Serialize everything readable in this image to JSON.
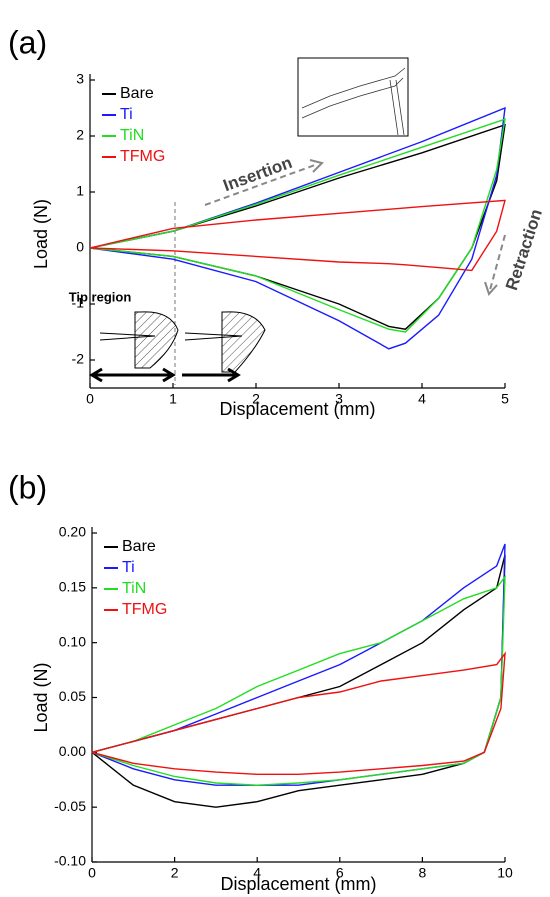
{
  "chart_data": [
    {
      "type": "line",
      "panel": "(a)",
      "xlabel": "Displacement (mm)",
      "ylabel": "Load (N)",
      "xlim": [
        0,
        5
      ],
      "ylim": [
        -2.5,
        3
      ],
      "xticks": [
        0,
        1,
        2,
        3,
        4,
        5
      ],
      "yticks": [
        -2,
        -1,
        0,
        1,
        2,
        3
      ],
      "legend": "upper left",
      "annotations": [
        "Insertion",
        "Retraction",
        "Tip region"
      ],
      "x": [
        0,
        1,
        2,
        3,
        4,
        5,
        4.9,
        4.6,
        4.2,
        3.8,
        3.6,
        3,
        2,
        1,
        0
      ],
      "series": [
        {
          "name": "Bare",
          "color": "#000000",
          "values": [
            0,
            0.3,
            0.75,
            1.25,
            1.7,
            2.2,
            1.2,
            0,
            -0.9,
            -1.45,
            -1.4,
            -1.0,
            -0.5,
            -0.15,
            0
          ]
        },
        {
          "name": "Ti",
          "color": "#1a1aff",
          "values": [
            0,
            0.3,
            0.8,
            1.35,
            1.9,
            2.5,
            1.3,
            -0.2,
            -1.2,
            -1.7,
            -1.8,
            -1.3,
            -0.6,
            -0.2,
            0
          ]
        },
        {
          "name": "TiN",
          "color": "#22dd22",
          "values": [
            0,
            0.3,
            0.78,
            1.3,
            1.8,
            2.3,
            1.4,
            0,
            -0.9,
            -1.5,
            -1.45,
            -1.1,
            -0.5,
            -0.15,
            0
          ]
        },
        {
          "name": "TFMG",
          "color": "#ee1111",
          "values": [
            0,
            0.35,
            0.5,
            0.62,
            0.74,
            0.85,
            0.3,
            -0.4,
            -0.35,
            -0.3,
            -0.28,
            -0.25,
            -0.15,
            -0.05,
            0
          ]
        }
      ]
    },
    {
      "type": "line",
      "panel": "(b)",
      "xlabel": "Displacement (mm)",
      "ylabel": "Load (N)",
      "xlim": [
        0,
        10
      ],
      "ylim": [
        -0.1,
        0.2
      ],
      "xticks": [
        0,
        2,
        4,
        6,
        8,
        10
      ],
      "yticks": [
        {
          "value": -0.1,
          "label": "-0.10"
        },
        {
          "value": -0.05,
          "label": "-0.05"
        },
        {
          "value": 0,
          "label": "0.00"
        },
        {
          "value": 0.05,
          "label": "0.05"
        },
        {
          "value": 0.1,
          "label": "0.10"
        },
        {
          "value": 0.15,
          "label": "0.15"
        },
        {
          "value": 0.2,
          "label": "0.20"
        }
      ],
      "legend": "upper left",
      "x": [
        0,
        1,
        2,
        3,
        4,
        5,
        6,
        7,
        8,
        9,
        9.8,
        10,
        9.9,
        9.5,
        9,
        8,
        7,
        6,
        5,
        4,
        3,
        2,
        1,
        0
      ],
      "series": [
        {
          "name": "Bare",
          "color": "#000000",
          "values": [
            0,
            0.01,
            0.02,
            0.03,
            0.04,
            0.05,
            0.06,
            0.08,
            0.1,
            0.13,
            0.15,
            0.18,
            0.05,
            0,
            -0.01,
            -0.02,
            -0.025,
            -0.03,
            -0.035,
            -0.045,
            -0.05,
            -0.045,
            -0.03,
            0
          ]
        },
        {
          "name": "Ti",
          "color": "#1a1aff",
          "values": [
            0,
            0.01,
            0.02,
            0.035,
            0.05,
            0.065,
            0.08,
            0.1,
            0.12,
            0.15,
            0.17,
            0.19,
            0.05,
            0,
            -0.01,
            -0.015,
            -0.02,
            -0.025,
            -0.03,
            -0.03,
            -0.03,
            -0.025,
            -0.015,
            0
          ]
        },
        {
          "name": "TiN",
          "color": "#22dd22",
          "values": [
            0,
            0.01,
            0.025,
            0.04,
            0.06,
            0.075,
            0.09,
            0.1,
            0.12,
            0.14,
            0.15,
            0.16,
            0.05,
            0,
            -0.01,
            -0.015,
            -0.02,
            -0.025,
            -0.028,
            -0.03,
            -0.028,
            -0.022,
            -0.012,
            0
          ]
        },
        {
          "name": "TFMG",
          "color": "#ee1111",
          "values": [
            0,
            0.01,
            0.02,
            0.03,
            0.04,
            0.05,
            0.055,
            0.065,
            0.07,
            0.075,
            0.08,
            0.09,
            0.04,
            0,
            -0.008,
            -0.012,
            -0.015,
            -0.018,
            -0.02,
            -0.02,
            -0.018,
            -0.015,
            -0.01,
            0
          ]
        }
      ]
    }
  ]
}
